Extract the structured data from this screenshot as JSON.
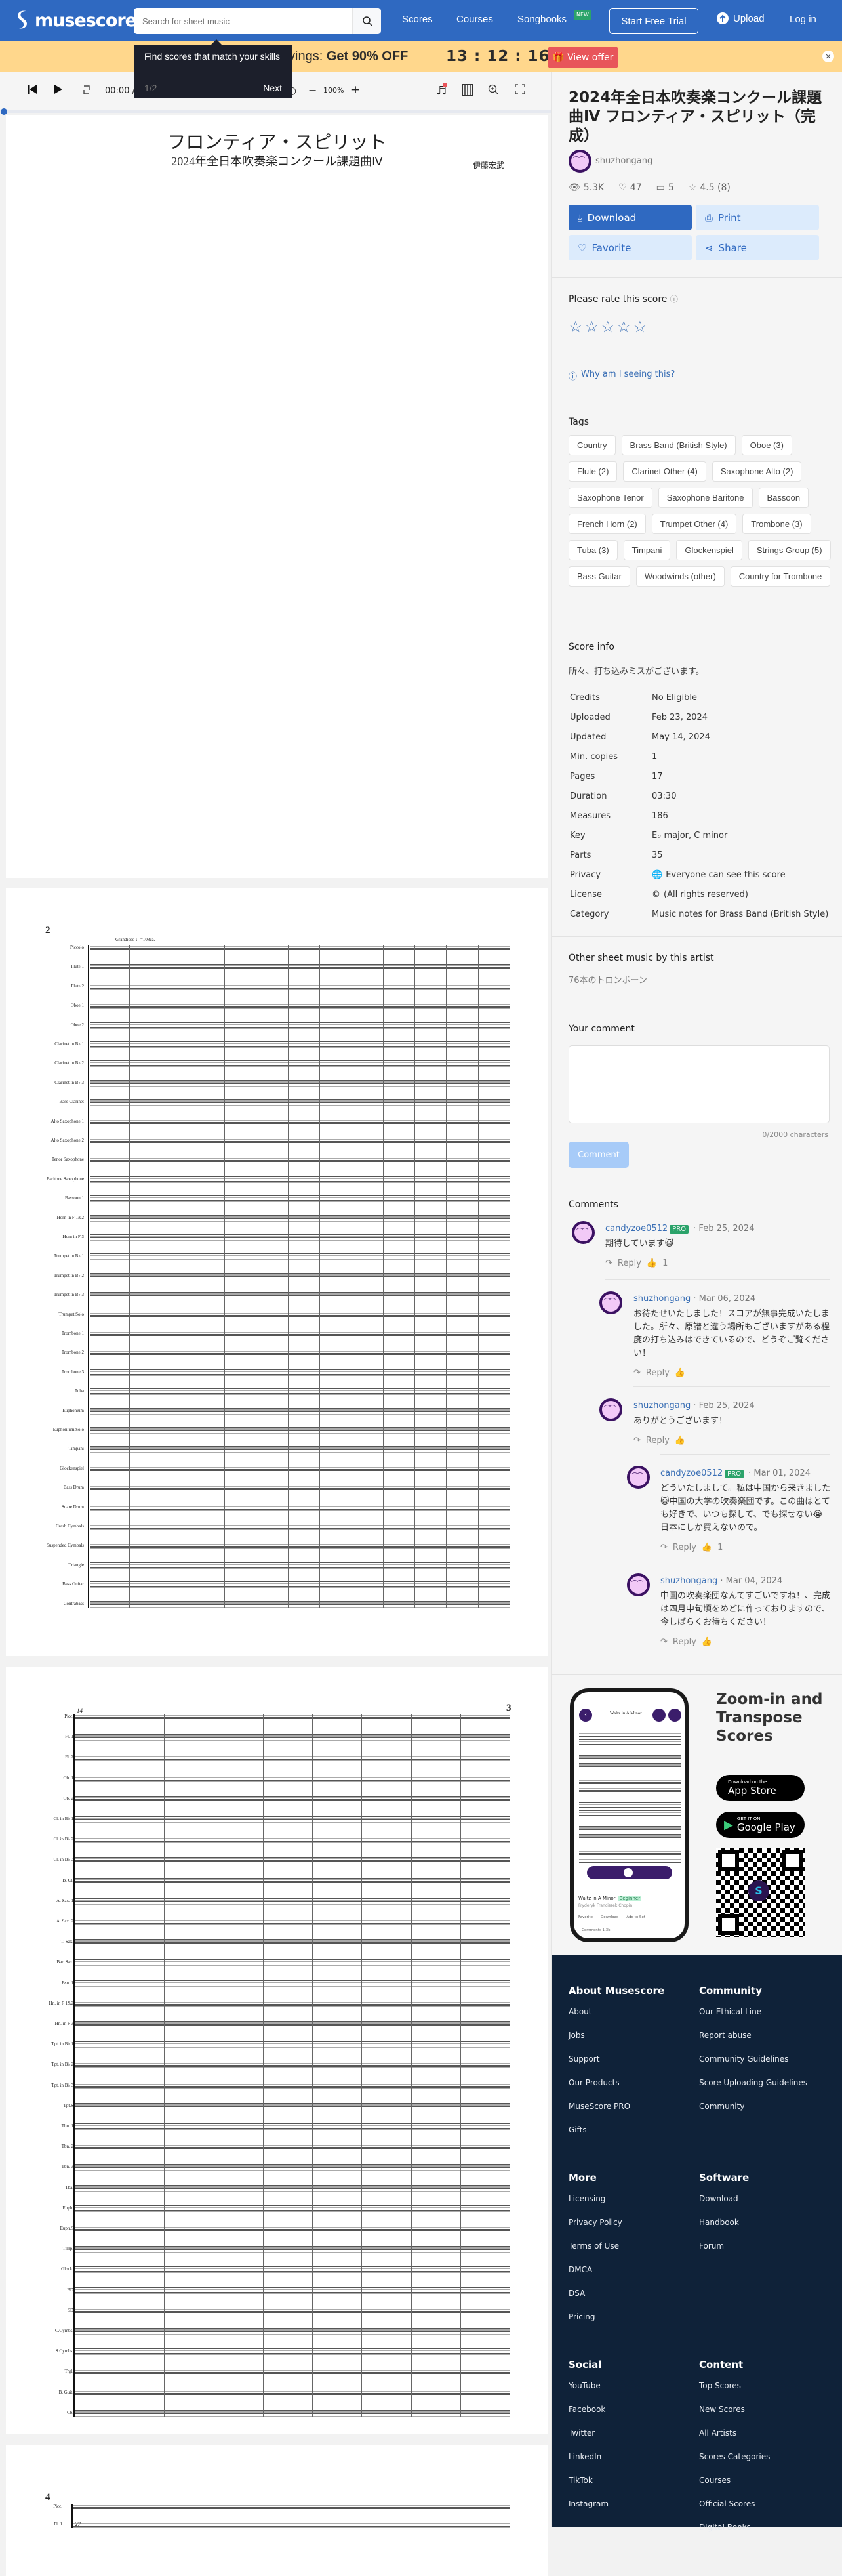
{
  "header": {
    "logo": "musescore",
    "search_placeholder": "Search for sheet music",
    "nav": [
      "Scores",
      "Courses",
      "Songbooks"
    ],
    "new_badge": "NEW",
    "trial": "Start Free Trial",
    "upload": "Upload",
    "login": "Log in"
  },
  "banner": {
    "text_partial": "vings: ",
    "text_bold": "Get 90% OFF",
    "timer": "13 : 12 : 16",
    "offer": "View offer"
  },
  "tooltip": {
    "text": "Find scores that match your skills",
    "count": "1/2",
    "next": "Next"
  },
  "player": {
    "time": "00:00 /",
    "zoom": "100%",
    "minus": "−",
    "plus": "+"
  },
  "score": {
    "page1": {
      "title": "フロンティア・スピリット",
      "subtitle": "2024年全日本吹奏楽コンクール課題曲Ⅳ",
      "composer": "伊藤宏武"
    },
    "page2": {
      "number": "2",
      "tempo": "Grandioso ♩=108ca.",
      "instruments": [
        "Piccolo",
        "Flute 1",
        "Flute 2",
        "Oboe 1",
        "Oboe 2",
        "Clarinet in B♭ 1",
        "Clarinet in B♭ 2",
        "Clarinet in B♭ 3",
        "Bass Clarinet",
        "Alto Saxophone 1",
        "Alto Saxophone 2",
        "Tenor Saxophone",
        "Baritone Saxophone",
        "Bassoon 1",
        "Horn in F 1&2",
        "Horn in F 3",
        "Trumpet in B♭ 1",
        "Trumpet in B♭ 2",
        "Trumpet in B♭ 3",
        "Trumpet.Solo",
        "Trombone 1",
        "Trombone 2",
        "Trombone 3",
        "Tuba",
        "Euphonium",
        "Euphonium.Solo",
        "Timpani",
        "Glockenspiel",
        "Bass Drum",
        "Snare Drum",
        "Crash Cymbals",
        "Suspended Cymbals",
        "Triangle",
        "Bass Guitar",
        "Contrabass"
      ]
    },
    "page3": {
      "number": "3",
      "measure": "14",
      "instruments": [
        "Picc.",
        "Fl. 1",
        "Fl. 2",
        "Ob. 1",
        "Ob. 2",
        "Cl. in B♭ 1",
        "Cl. in B♭ 2",
        "Cl. in B♭ 3",
        "B. Cl.",
        "A. Sax. 1",
        "A. Sax. 2",
        "T. Sax.",
        "Bar. Sax.",
        "Bsn. 1",
        "Hn. in F 1&2",
        "Hn. in F 3",
        "Tpt. in B♭ 1",
        "Tpt. in B♭ 2",
        "Tpt. in B♭ 3",
        "Tpt.S",
        "Tbn. 1",
        "Tbn. 2",
        "Tbn. 3",
        "Tba.",
        "Euph.",
        "Euph.S",
        "Timp.",
        "Glock.",
        "BD",
        "SD",
        "C.Cymbs.",
        "S.Cymbs.",
        "Trgl.",
        "B. Guit.",
        "Cb."
      ]
    },
    "page4": {
      "number": "4",
      "measure": "27",
      "instruments": [
        "Picc.",
        "Fl. 1"
      ]
    }
  },
  "sidebar": {
    "title": "2024年全日本吹奏楽コンクール課題曲Ⅳ フロンティア・スピリット（完成）",
    "author": "shuzhongang",
    "stats": {
      "views": "5.3K",
      "favorites": "47",
      "comments": "5",
      "rating": "4.5 (8)"
    },
    "actions": {
      "download": "Download",
      "print": "Print",
      "favorite": "Favorite",
      "share": "Share"
    },
    "rate_title": "Please rate this score",
    "rating_stars": 5,
    "why": "Why am I seeing this?",
    "tags_title": "Tags",
    "tags": [
      "Country",
      "Brass Band (British Style)",
      "Oboe (3)",
      "Flute (2)",
      "Clarinet Other (4)",
      "Saxophone Alto (2)",
      "Saxophone Tenor",
      "Saxophone Baritone",
      "Bassoon",
      "French Horn (2)",
      "Trumpet Other (4)",
      "Trombone (3)",
      "Tuba (3)",
      "Timpani",
      "Glockenspiel",
      "Strings Group (5)",
      "Bass Guitar",
      "Woodwinds (other)",
      "Country for Trombone"
    ],
    "info_title": "Score info",
    "description": "所々、打ち込みミスがございます。",
    "info": [
      {
        "label": "Credits",
        "value": "No Eligible"
      },
      {
        "label": "Uploaded",
        "value": "Feb 23, 2024"
      },
      {
        "label": "Updated",
        "value": "May 14, 2024"
      },
      {
        "label": "Min. copies",
        "value": "1"
      },
      {
        "label": "Pages",
        "value": "17"
      },
      {
        "label": "Duration",
        "value": "03:30"
      },
      {
        "label": "Measures",
        "value": "186"
      },
      {
        "label": "Key",
        "value": "E♭ major, C minor"
      },
      {
        "label": "Parts",
        "value": "35"
      },
      {
        "label": "Privacy",
        "value": "Everyone can see this score",
        "icon": "globe-icon"
      },
      {
        "label": "License",
        "value": "(All rights reserved)",
        "icon": "copyright-icon"
      },
      {
        "label": "Category",
        "value": "Music notes for Brass Band (British Style)"
      }
    ],
    "other_title": "Other sheet music by this artist",
    "other_link": "76本のトロンボーン",
    "your_comment": "Your comment",
    "comment_placeholder": "",
    "char_count": "0/2000 characters",
    "comment_button": "Comment",
    "comments_title": "Comments",
    "reply_label": "Reply",
    "comments": [
      {
        "user": "candyzoe0512",
        "pro": "PRO",
        "date": "· Feb 25, 2024",
        "text": "期待しています😺",
        "likes": "1"
      },
      {
        "user": "shuzhongang",
        "pro": "",
        "date": "· Mar 06, 2024",
        "text": "お待たせいたしました！スコアが無事完成いたしました。所々、原譜と違う場所もございますがある程度の打ち込みはできているので、どうぞご覧ください！",
        "likes": ""
      },
      {
        "user": "shuzhongang",
        "pro": "",
        "date": "· Feb 25, 2024",
        "text": "ありがとうございます！",
        "likes": ""
      },
      {
        "user": "candyzoe0512",
        "pro": "PRO",
        "date": "· Mar 01, 2024",
        "text": "どういたしまして。私は中国から来きました😺中国の大学の吹奏楽団です。この曲はとても好きで、いつも探して、でも探せない😭日本にしか買えないので。",
        "likes": "1"
      },
      {
        "user": "shuzhongang",
        "pro": "",
        "date": "· Mar 04, 2024",
        "text": "中国の吹奏楽団なんてすごいですね！、完成は四月中旬頃をめどに作っておりますので、今しばらくお待ちください！",
        "likes": ""
      }
    ],
    "promo": {
      "title": "Zoom-in and Transpose Scores",
      "appstore_small": "Download on the",
      "appstore": "App Store",
      "gplay_small": "GET IT ON",
      "gplay": "Google Play",
      "phone_song": "Waltz in A Minor",
      "phone_level": "Beginner",
      "phone_composer": "Fryderyk Franciszek Chopin",
      "phone_actions": [
        "Favorite",
        "Download",
        "Add to Set"
      ],
      "phone_comments": "Comments 1.3k"
    }
  },
  "footer": {
    "columns": [
      {
        "title": "About Musescore",
        "links": [
          "About",
          "Jobs",
          "Support",
          "Our Products",
          "MuseScore PRO",
          "Gifts"
        ]
      },
      {
        "title": "Community",
        "links": [
          "Our Ethical Line",
          "Report abuse",
          "Community Guidelines",
          "Score Uploading Guidelines",
          "Community"
        ]
      },
      {
        "title": "More",
        "links": [
          "Licensing",
          "Privacy Policy",
          "Terms of Use",
          "DMCA",
          "DSA",
          "Pricing"
        ]
      },
      {
        "title": "Software",
        "links": [
          "Download",
          "Handbook",
          "Forum"
        ]
      },
      {
        "title": "Social",
        "links": [
          "YouTube",
          "Facebook",
          "Twitter",
          "LinkedIn",
          "TikTok",
          "Instagram"
        ]
      },
      {
        "title": "Content",
        "links": [
          "Top Scores",
          "New Scores",
          "All Artists",
          "Scores Categories",
          "Courses",
          "Official Scores",
          "Digital Books"
        ]
      }
    ]
  },
  "colors": {
    "brand": "#2f69c1",
    "banner": "#ffd78c",
    "offer": "#e8555a",
    "pro": "#2ba36a",
    "footer": "#0f2239"
  }
}
